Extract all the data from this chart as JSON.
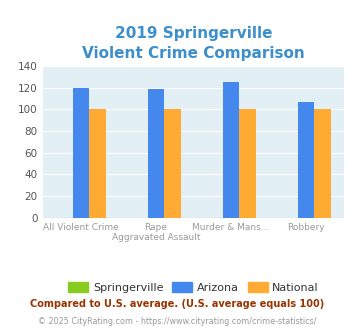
{
  "title_line1": "2019 Springerville",
  "title_line2": "Violent Crime Comparison",
  "title_color": "#3d8fcc",
  "categories_line1": [
    "All Violent Crime",
    "Rape",
    "Murder & Mans...",
    "Robbery"
  ],
  "categories_line2": [
    "",
    "Aggravated Assault",
    "",
    ""
  ],
  "series": {
    "Springerville": [
      0,
      0,
      0,
      0
    ],
    "Arizona": [
      120,
      119,
      125,
      107
    ],
    "National": [
      100,
      100,
      100,
      100
    ]
  },
  "colors": {
    "Springerville": "#88cc22",
    "Arizona": "#4488ee",
    "National": "#ffaa33"
  },
  "ylim": [
    0,
    140
  ],
  "yticks": [
    0,
    20,
    40,
    60,
    80,
    100,
    120,
    140
  ],
  "bar_width": 0.22,
  "plot_area_color": "#e2eff5",
  "grid_color": "#ffffff",
  "footnote1": "Compared to U.S. average. (U.S. average equals 100)",
  "footnote2": "© 2025 CityRating.com - https://www.cityrating.com/crime-statistics/",
  "footnote1_color": "#993300",
  "footnote2_color": "#999999",
  "footnote2_url_color": "#4488cc",
  "xlabel_color": "#999999",
  "legend_text_color": "#333333"
}
